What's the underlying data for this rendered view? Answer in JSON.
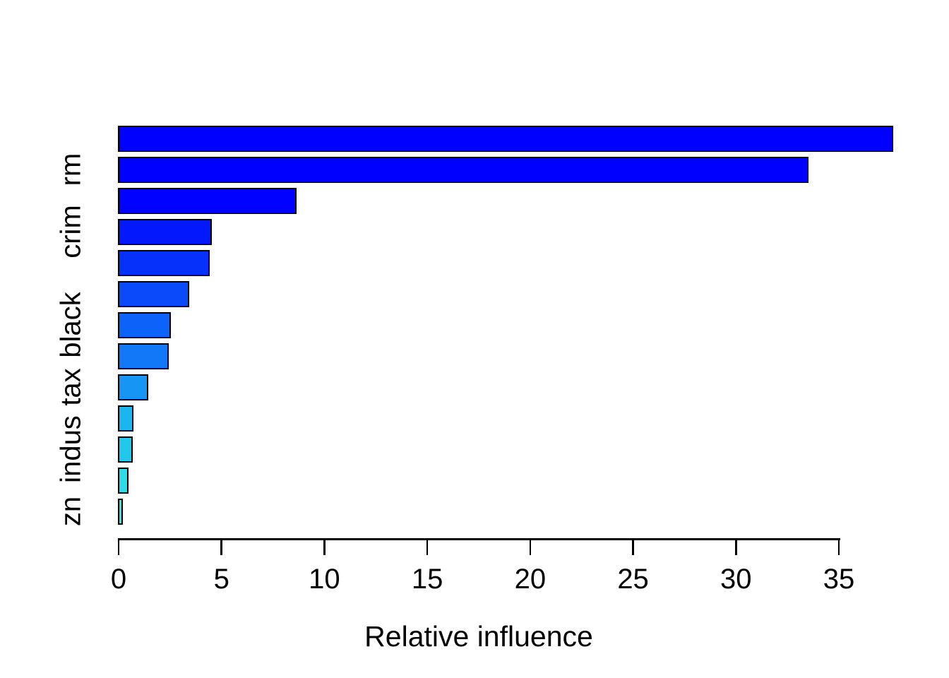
{
  "chart_data": {
    "type": "bar",
    "orientation": "horizontal",
    "title": "",
    "xlabel": "Relative influence",
    "ylabel": "",
    "xlim": [
      0,
      35
    ],
    "x_ticks": [
      0,
      5,
      10,
      15,
      20,
      25,
      30,
      35
    ],
    "grid": false,
    "legend": "none",
    "bar_border_color": "#000000",
    "background_color": "#ffffff",
    "bars": [
      {
        "label": "",
        "value": 37.6,
        "color": "#0000ff"
      },
      {
        "label": "rm",
        "value": 33.5,
        "color": "#0000ff"
      },
      {
        "label": "",
        "value": 8.6,
        "color": "#0001ff"
      },
      {
        "label": "crim",
        "value": 4.5,
        "color": "#0318fc"
      },
      {
        "label": "",
        "value": 4.4,
        "color": "#0531fa"
      },
      {
        "label": "",
        "value": 3.4,
        "color": "#0a4afa"
      },
      {
        "label": "black",
        "value": 2.5,
        "color": "#0d63f9"
      },
      {
        "label": "",
        "value": 2.4,
        "color": "#1278f7"
      },
      {
        "label": "tax",
        "value": 1.4,
        "color": "#1795f4"
      },
      {
        "label": "",
        "value": 0.7,
        "color": "#1bb5f0"
      },
      {
        "label": "indus",
        "value": 0.65,
        "color": "#20c9ec"
      },
      {
        "label": "",
        "value": 0.45,
        "color": "#2bdce8"
      },
      {
        "label": "zn",
        "value": 0.17,
        "color": "#35e5df"
      }
    ]
  }
}
